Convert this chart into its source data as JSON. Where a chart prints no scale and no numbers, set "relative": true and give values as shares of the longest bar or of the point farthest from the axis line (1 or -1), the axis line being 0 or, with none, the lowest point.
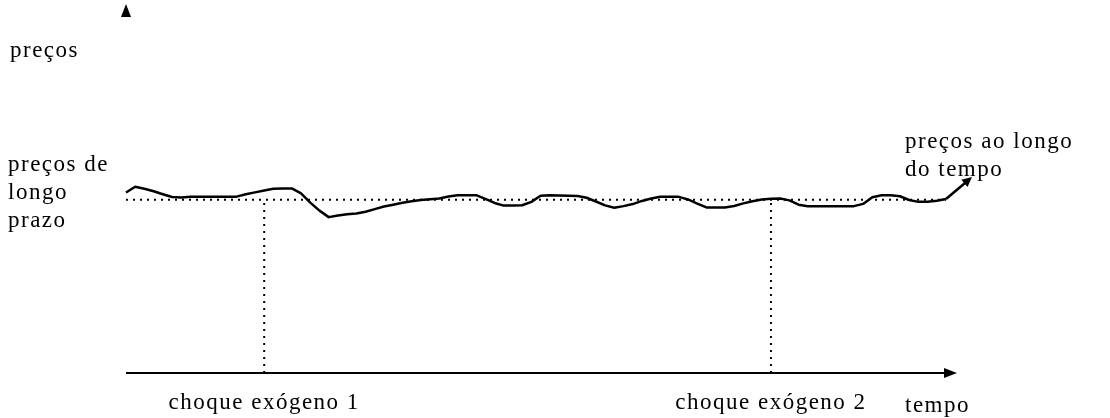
{
  "chart_data": {
    "type": "line",
    "annotations": [
      "preços"
    ],
    "xlabel": "tempo",
    "relative": true,
    "marker": "none",
    "line_style": "solid",
    "categories": [
      null,
      null,
      null,
      null,
      null,
      null,
      null,
      null,
      null,
      null,
      null,
      null,
      null,
      null,
      null,
      "choque exógeno 1",
      null,
      null,
      null,
      null,
      null,
      null,
      null,
      null,
      null,
      null,
      null,
      null,
      null,
      null,
      null,
      null,
      null,
      null,
      null,
      null,
      null,
      null,
      null,
      null,
      null,
      null,
      null,
      null,
      null,
      null,
      null,
      null,
      null,
      null,
      null,
      null,
      null,
      null,
      null,
      null,
      null,
      null,
      null,
      null,
      null,
      null,
      null,
      null,
      null,
      null,
      null,
      null,
      null,
      null,
      "choque exógeno 2",
      null,
      null,
      null,
      null,
      null,
      null,
      null,
      null,
      null,
      null,
      null,
      null,
      null,
      null,
      null,
      null,
      null,
      null,
      null
    ],
    "series": [
      {
        "name": "preços ao longo do tempo",
        "color": "#000000",
        "values": [
          0.969,
          1.0,
          0.989,
          0.976,
          0.96,
          0.945,
          0.942,
          0.946,
          0.946,
          0.946,
          0.946,
          0.946,
          0.947,
          0.96,
          0.97,
          0.98,
          0.989,
          0.991,
          0.991,
          0.965,
          0.915,
          0.872,
          0.837,
          0.846,
          0.852,
          0.857,
          0.866,
          0.88,
          0.894,
          0.904,
          0.914,
          0.922,
          0.929,
          0.933,
          0.937,
          0.948,
          0.955,
          0.955,
          0.955,
          0.935,
          0.913,
          0.899,
          0.9,
          0.901,
          0.919,
          0.952,
          0.954,
          0.953,
          0.952,
          0.951,
          0.941,
          0.921,
          0.9,
          0.887,
          0.896,
          0.907,
          0.924,
          0.937,
          0.946,
          0.946,
          0.946,
          0.932,
          0.91,
          0.889,
          0.889,
          0.889,
          0.897,
          0.911,
          0.922,
          0.932,
          0.936,
          0.937,
          0.927,
          0.904,
          0.896,
          0.896,
          0.896,
          0.896,
          0.896,
          0.896,
          0.908,
          0.944,
          0.955,
          0.955,
          0.949,
          0.929,
          0.919,
          0.919,
          0.925,
          0.934
        ]
      }
    ],
    "ref_lines": [
      {
        "axis": "y",
        "value": 0.93,
        "label": "preços de longo prazo",
        "line_style": "dotted"
      },
      {
        "axis": "x",
        "value": "choque exógeno 1",
        "line_style": "dotted"
      },
      {
        "axis": "x",
        "value": "choque exógeno 2",
        "line_style": "dotted"
      }
    ]
  }
}
